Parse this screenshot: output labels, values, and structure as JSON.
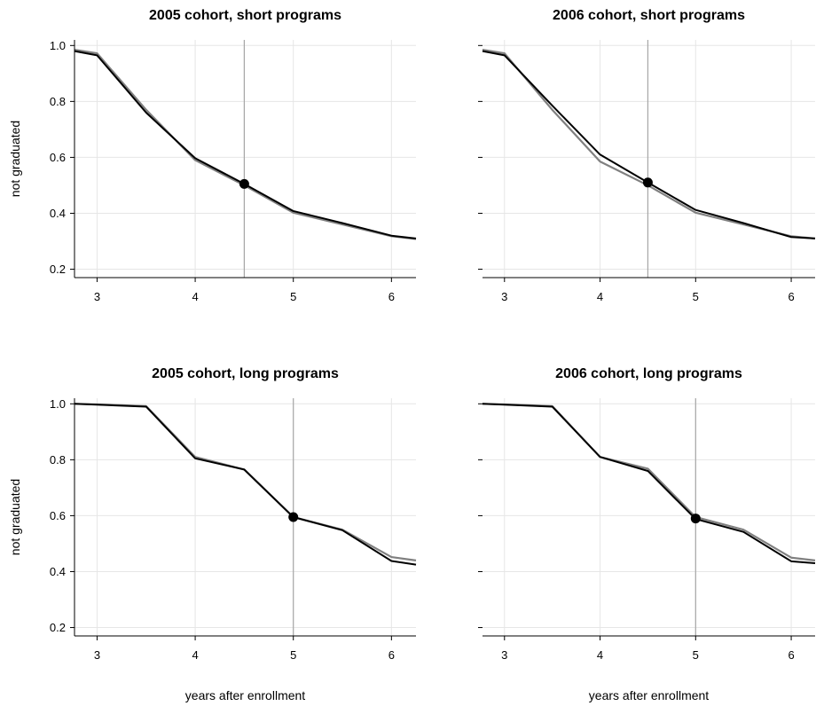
{
  "chart_data": [
    {
      "type": "line",
      "title": "2005 cohort, short programs",
      "xlabel": "",
      "ylabel": "not graduated",
      "xlim": [
        2.77,
        6.25
      ],
      "ylim": [
        0.17,
        1.02
      ],
      "xticks": [
        3,
        4,
        5,
        6
      ],
      "yticks": [
        0.2,
        0.4,
        0.6,
        0.8,
        1.0
      ],
      "ytick_labels": [
        "0.2",
        "0.4",
        "0.6",
        "0.8",
        "1.0"
      ],
      "grid": true,
      "vline": 4.5,
      "marker": {
        "x": 4.5,
        "y": 0.505
      },
      "series": [
        {
          "color": "#808080",
          "x": [
            2.77,
            3,
            3.5,
            4,
            4.5,
            5,
            5.5,
            6,
            6.25
          ],
          "y": [
            0.985,
            0.972,
            0.77,
            0.59,
            0.5,
            0.402,
            0.36,
            0.318,
            0.308
          ]
        },
        {
          "color": "#000000",
          "x": [
            2.77,
            3,
            3.5,
            4,
            4.5,
            5,
            5.5,
            6,
            6.25
          ],
          "y": [
            0.98,
            0.965,
            0.76,
            0.597,
            0.505,
            0.408,
            0.365,
            0.32,
            0.31
          ]
        }
      ]
    },
    {
      "type": "line",
      "title": "2006 cohort, short programs",
      "xlabel": "",
      "ylabel": "",
      "xlim": [
        2.77,
        6.25
      ],
      "ylim": [
        0.17,
        1.02
      ],
      "xticks": [
        3,
        4,
        5,
        6
      ],
      "yticks": [
        0.2,
        0.4,
        0.6,
        0.8,
        1.0
      ],
      "ytick_labels": [],
      "grid": true,
      "vline": 4.5,
      "marker": {
        "x": 4.5,
        "y": 0.51
      },
      "series": [
        {
          "color": "#808080",
          "x": [
            2.77,
            3,
            3.5,
            4,
            4.5,
            5,
            5.5,
            6,
            6.25
          ],
          "y": [
            0.985,
            0.972,
            0.77,
            0.585,
            0.5,
            0.402,
            0.36,
            0.318,
            0.31
          ]
        },
        {
          "color": "#000000",
          "x": [
            2.77,
            3,
            3.5,
            4,
            4.5,
            5,
            5.5,
            6,
            6.25
          ],
          "y": [
            0.98,
            0.965,
            0.785,
            0.61,
            0.51,
            0.412,
            0.365,
            0.315,
            0.31
          ]
        }
      ]
    },
    {
      "type": "line",
      "title": "2005 cohort, long programs",
      "xlabel": "years after enrollment",
      "ylabel": "not graduated",
      "xlim": [
        2.77,
        6.25
      ],
      "ylim": [
        0.17,
        1.02
      ],
      "xticks": [
        3,
        4,
        5,
        6
      ],
      "yticks": [
        0.2,
        0.4,
        0.6,
        0.8,
        1.0
      ],
      "ytick_labels": [
        "0.2",
        "0.4",
        "0.6",
        "0.8",
        "1.0"
      ],
      "grid": true,
      "vline": 5,
      "marker": {
        "x": 5,
        "y": 0.595
      },
      "series": [
        {
          "color": "#808080",
          "x": [
            2.77,
            3,
            3.5,
            4,
            4.5,
            5,
            5.5,
            6,
            6.25
          ],
          "y": [
            1.0,
            0.998,
            0.992,
            0.81,
            0.765,
            0.595,
            0.55,
            0.452,
            0.44
          ]
        },
        {
          "color": "#000000",
          "x": [
            2.77,
            3,
            3.5,
            4,
            4.5,
            5,
            5.5,
            6,
            6.25
          ],
          "y": [
            1.0,
            0.997,
            0.99,
            0.805,
            0.765,
            0.595,
            0.548,
            0.438,
            0.425
          ]
        }
      ]
    },
    {
      "type": "line",
      "title": "2006 cohort, long programs",
      "xlabel": "years after enrollment",
      "ylabel": "",
      "xlim": [
        2.77,
        6.25
      ],
      "ylim": [
        0.17,
        1.02
      ],
      "xticks": [
        3,
        4,
        5,
        6
      ],
      "yticks": [
        0.2,
        0.4,
        0.6,
        0.8,
        1.0
      ],
      "ytick_labels": [],
      "grid": true,
      "vline": 5,
      "marker": {
        "x": 5,
        "y": 0.59
      },
      "series": [
        {
          "color": "#808080",
          "x": [
            2.77,
            3,
            3.5,
            4,
            4.5,
            5,
            5.5,
            6,
            6.25
          ],
          "y": [
            1.0,
            0.998,
            0.992,
            0.81,
            0.768,
            0.595,
            0.55,
            0.45,
            0.44
          ]
        },
        {
          "color": "#000000",
          "x": [
            2.77,
            3,
            3.5,
            4,
            4.5,
            5,
            5.5,
            6,
            6.25
          ],
          "y": [
            1.0,
            0.997,
            0.99,
            0.81,
            0.76,
            0.588,
            0.542,
            0.437,
            0.43
          ]
        }
      ]
    }
  ]
}
